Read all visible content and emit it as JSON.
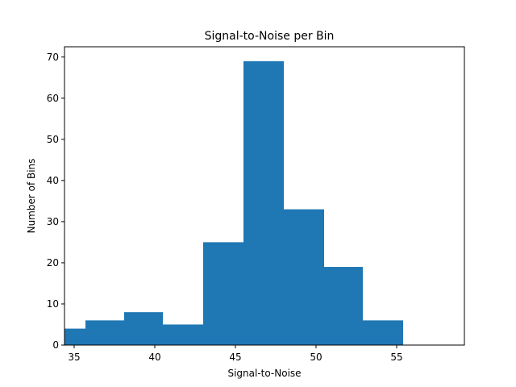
{
  "chart_data": {
    "type": "bar",
    "title": "Signal-to-Noise per Bin",
    "xlabel": "Signal-to-Noise",
    "ylabel": "Number of Bins",
    "xlim": [
      34.4,
      59.2
    ],
    "ylim": [
      0,
      72.5
    ],
    "xticks": [
      35,
      40,
      45,
      50,
      55
    ],
    "yticks": [
      0,
      10,
      20,
      30,
      40,
      50,
      60,
      70
    ],
    "grid": false,
    "color": "#1f77b4",
    "bins": [
      {
        "x0": 33.1,
        "x1": 35.7,
        "count": 4
      },
      {
        "x0": 35.7,
        "x1": 38.1,
        "count": 6
      },
      {
        "x0": 38.1,
        "x1": 40.5,
        "count": 8
      },
      {
        "x0": 40.5,
        "x1": 43.0,
        "count": 5
      },
      {
        "x0": 43.0,
        "x1": 45.5,
        "count": 25
      },
      {
        "x0": 45.5,
        "x1": 48.0,
        "count": 69
      },
      {
        "x0": 48.0,
        "x1": 50.5,
        "count": 33
      },
      {
        "x0": 50.5,
        "x1": 52.9,
        "count": 19
      },
      {
        "x0": 52.9,
        "x1": 55.4,
        "count": 6
      }
    ]
  }
}
